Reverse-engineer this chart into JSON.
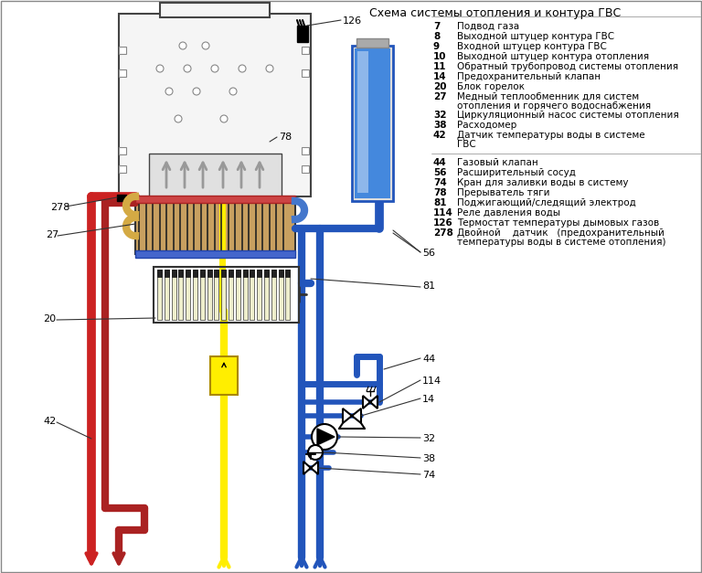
{
  "title": "Схема системы отопления и контура ГВС",
  "bg_color": "#ffffff",
  "legend_col1": [
    [
      "7",
      "Подвод газа"
    ],
    [
      "8",
      "Выходной штуцер контура ГВС"
    ],
    [
      "9",
      "Входной штуцер контура ГВС"
    ],
    [
      "10",
      "Выходной штуцер контура отопления"
    ],
    [
      "11",
      "Обратный трубопровод системы отопления"
    ],
    [
      "14",
      "Предохранительный клапан"
    ],
    [
      "20",
      "Блок горелок"
    ],
    [
      "27",
      "Медный теплообменник для систем отопления и горячего водоснабжения"
    ],
    [
      "32",
      "Циркуляционный насос системы отопления"
    ],
    [
      "38",
      "Расходомер"
    ],
    [
      "42",
      "Датчик температуры воды в системе ГВС"
    ]
  ],
  "legend_col2": [
    [
      "44",
      "Газовый клапан"
    ],
    [
      "56",
      "Расширительный сосуд"
    ],
    [
      "74",
      "Кран для заливки воды в систему"
    ],
    [
      "78",
      "Прерыватель тяги"
    ],
    [
      "81",
      "Поджигающий/следящий электрод"
    ],
    [
      "114",
      "Реле давления воды"
    ],
    [
      "126",
      "Термостат температуры дымовых газов"
    ],
    [
      "278",
      "Двойной    датчик   (предохранительный температуры воды в системе отопления)"
    ]
  ],
  "diagram_labels": [
    [
      370,
      22,
      "126"
    ],
    [
      302,
      148,
      "78"
    ],
    [
      60,
      228,
      "278"
    ],
    [
      55,
      258,
      "27"
    ],
    [
      52,
      350,
      "20"
    ],
    [
      52,
      462,
      "42"
    ],
    [
      460,
      276,
      "56"
    ],
    [
      460,
      390,
      "44"
    ],
    [
      460,
      415,
      "114"
    ],
    [
      460,
      435,
      "14"
    ],
    [
      460,
      478,
      "32"
    ],
    [
      460,
      500,
      "38"
    ],
    [
      460,
      518,
      "74"
    ],
    [
      460,
      312,
      "81"
    ]
  ],
  "colors": {
    "red": "#cc2222",
    "dark_red": "#aa2222",
    "blue": "#2255bb",
    "yellow": "#ffee00",
    "boiler_body": "#f5f5f5",
    "boiler_border": "#444444",
    "gas_valve_yellow": "#ffee00",
    "gray_arrow": "#999999",
    "heat_ex_red": "#8b0000",
    "heat_ex_blue": "#000088",
    "heat_ex_tan": "#c8a060"
  }
}
